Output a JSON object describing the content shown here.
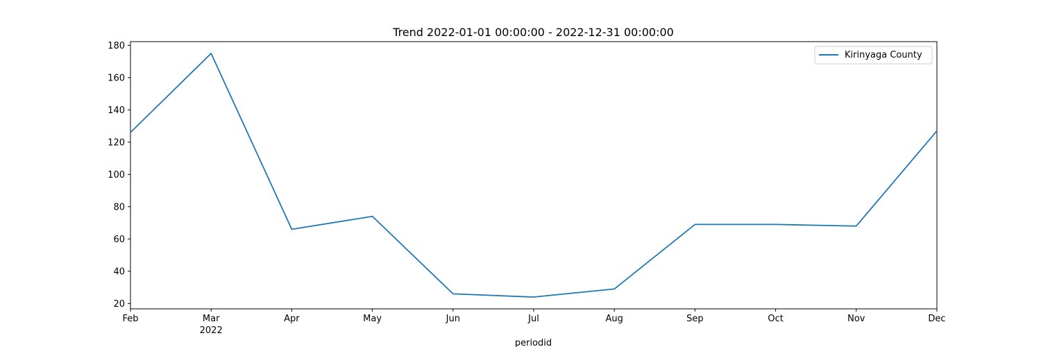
{
  "chart_data": {
    "type": "line",
    "title": "Trend 2022-01-01 00:00:00 - 2022-12-31 00:00:00",
    "xlabel": "periodid",
    "ylabel": "",
    "categories": [
      "Feb",
      "Mar",
      "Apr",
      "May",
      "Jun",
      "Jul",
      "Aug",
      "Sep",
      "Oct",
      "Nov",
      "Dec"
    ],
    "year_label": "2022",
    "year_label_under": "Mar",
    "series": [
      {
        "name": "Kirinyaga County",
        "color": "#1f77b4",
        "values": [
          126,
          175,
          66,
          74,
          26,
          24,
          29,
          69,
          69,
          68,
          127
        ]
      }
    ],
    "ylim": [
      16.7,
      182.3
    ],
    "yticks": [
      20,
      40,
      60,
      80,
      100,
      120,
      140,
      160,
      180
    ],
    "grid": false,
    "legend_position": "top-right"
  }
}
